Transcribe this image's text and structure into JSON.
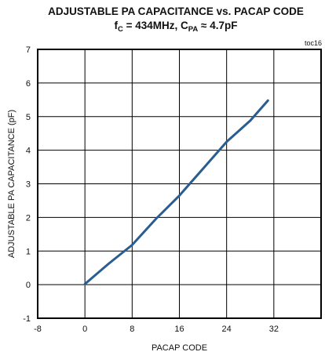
{
  "chart_data": {
    "type": "line",
    "title": "ADJUSTABLE  PA CAPACITANCE  vs. PACAP  CODE",
    "subtitle": {
      "parts": [
        {
          "text": "f",
          "sub": false
        },
        {
          "text": "C",
          "sub": true
        },
        {
          "text": " = 434MHz, C",
          "sub": false
        },
        {
          "text": "PA",
          "sub": true
        },
        {
          "text": " ≈ 4.7pF",
          "sub": false
        }
      ]
    },
    "figure_code": "toc16",
    "xlabel": "PACAP CODE",
    "ylabel": "ADJUSTABLE  PA CAPACITANCE (pF)",
    "xlim": [
      -8,
      40
    ],
    "ylim": [
      -1,
      7
    ],
    "xticks": [
      -8,
      0,
      8,
      16,
      24,
      32
    ],
    "yticks": [
      -1,
      0,
      1,
      2,
      3,
      4,
      5,
      6,
      7
    ],
    "grid": true,
    "series": [
      {
        "color": "#2a5d8f",
        "x": [
          0,
          4,
          8,
          12,
          16,
          20,
          24,
          28,
          31
        ],
        "y": [
          0.02,
          0.62,
          1.18,
          1.95,
          2.65,
          3.45,
          4.25,
          4.88,
          5.48
        ]
      }
    ]
  }
}
